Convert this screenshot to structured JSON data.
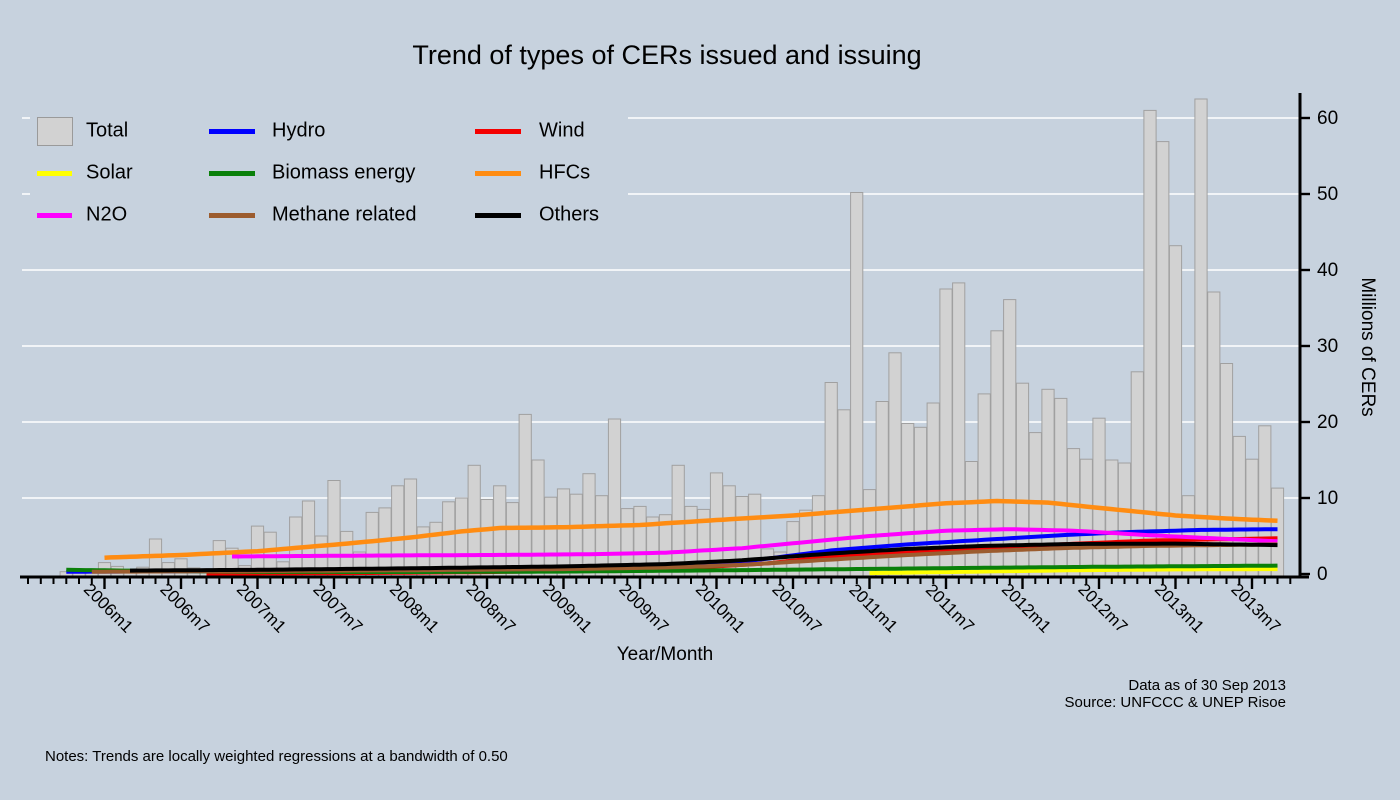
{
  "title": "Trend of types of CERs issued and issuing",
  "notes": "Notes: Trends are locally weighted regressions at a bandwidth of 0.50",
  "source": {
    "line1": "Data as of 30 Sep 2013",
    "line2": "Source: UNFCCC & UNEP Risoe"
  },
  "colors": {
    "background": "#c7d2de",
    "gridline": "#ffffff",
    "bar_fill": "#d2d2d2",
    "bar_border": "#a0a0a0",
    "total": "#d2d2d2",
    "hydro": "#0000ff",
    "wind": "#f40000",
    "solar": "#ffff00",
    "biomass": "#0a800a",
    "hfcs": "#ff8c12",
    "n2o": "#ff00ff",
    "methane": "#9c5c2e",
    "others": "#000000"
  },
  "legend": {
    "items": [
      {
        "label": "Total",
        "series": "total",
        "type": "box"
      },
      {
        "label": "Hydro",
        "series": "hydro",
        "type": "line"
      },
      {
        "label": "Wind",
        "series": "wind",
        "type": "line"
      },
      {
        "label": "Solar",
        "series": "solar",
        "type": "line"
      },
      {
        "label": "Biomass energy",
        "series": "biomass",
        "type": "line"
      },
      {
        "label": "HFCs",
        "series": "hfcs",
        "type": "line"
      },
      {
        "label": "N2O",
        "series": "n2o",
        "type": "line"
      },
      {
        "label": "Methane related",
        "series": "methane",
        "type": "line"
      },
      {
        "label": "Others",
        "series": "others",
        "type": "line"
      }
    ]
  },
  "chart_data": {
    "type": "bar+line",
    "title": "Trend of types of CERs issued and issuing",
    "xlabel": "Year/Month",
    "ylabel": "Millions of CERs",
    "ylim": [
      0,
      63
    ],
    "y_ticks": [
      0,
      10,
      20,
      30,
      40,
      50,
      60
    ],
    "grid": "horizontal-white",
    "legend_position": "top-left-inside",
    "x_major_ticks": [
      "2006m1",
      "2006m7",
      "2007m1",
      "2007m7",
      "2008m1",
      "2008m7",
      "2009m1",
      "2009m7",
      "2010m1",
      "2010m7",
      "2011m1",
      "2011m7",
      "2012m1",
      "2012m7",
      "2013m1",
      "2013m7"
    ],
    "bar_series_name": "Total",
    "bar_months": [
      "2005m10",
      "2005m11",
      "2005m12",
      "2006m1",
      "2006m2",
      "2006m3",
      "2006m4",
      "2006m5",
      "2006m6",
      "2006m7",
      "2006m8",
      "2006m9",
      "2006m10",
      "2006m11",
      "2006m12",
      "2007m1",
      "2007m2",
      "2007m3",
      "2007m4",
      "2007m5",
      "2007m6",
      "2007m7",
      "2007m8",
      "2007m9",
      "2007m10",
      "2007m11",
      "2007m12",
      "2008m1",
      "2008m2",
      "2008m3",
      "2008m4",
      "2008m5",
      "2008m6",
      "2008m7",
      "2008m8",
      "2008m9",
      "2008m10",
      "2008m11",
      "2008m12",
      "2009m1",
      "2009m2",
      "2009m3",
      "2009m4",
      "2009m5",
      "2009m6",
      "2009m7",
      "2009m8",
      "2009m9",
      "2009m10",
      "2009m11",
      "2009m12",
      "2010m1",
      "2010m2",
      "2010m3",
      "2010m4",
      "2010m5",
      "2010m6",
      "2010m7",
      "2010m8",
      "2010m9",
      "2010m10",
      "2010m11",
      "2010m12",
      "2011m1",
      "2011m2",
      "2011m3",
      "2011m4",
      "2011m5",
      "2011m6",
      "2011m7",
      "2011m8",
      "2011m9",
      "2011m10",
      "2011m11",
      "2011m12",
      "2012m1",
      "2012m2",
      "2012m3",
      "2012m4",
      "2012m5",
      "2012m6",
      "2012m7",
      "2012m8",
      "2012m9",
      "2012m10",
      "2012m11",
      "2012m12",
      "2013m1",
      "2013m2",
      "2013m3",
      "2013m4",
      "2013m5",
      "2013m6",
      "2013m7",
      "2013m8",
      "2013m9"
    ],
    "bar_values": [
      0.3,
      0.15,
      0.15,
      1.5,
      1.0,
      0.5,
      0.9,
      4.6,
      1.5,
      2.0,
      0.8,
      0.6,
      4.4,
      3.4,
      1.1,
      6.3,
      5.5,
      1.6,
      7.5,
      9.6,
      5.0,
      12.3,
      5.6,
      2.9,
      8.1,
      8.7,
      11.6,
      12.5,
      6.2,
      6.8,
      9.5,
      10.0,
      14.3,
      9.8,
      11.6,
      9.4,
      21.0,
      15.0,
      10.1,
      11.2,
      10.5,
      13.2,
      10.3,
      20.4,
      8.6,
      8.9,
      7.5,
      7.8,
      14.3,
      8.9,
      8.5,
      13.3,
      11.6,
      10.2,
      10.5,
      3.3,
      2.9,
      6.9,
      8.4,
      10.3,
      25.2,
      21.6,
      50.2,
      11.1,
      22.7,
      29.1,
      19.8,
      19.3,
      22.5,
      37.5,
      38.3,
      14.8,
      23.7,
      32.0,
      36.1,
      25.1,
      18.6,
      24.3,
      23.1,
      16.5,
      15.1,
      20.5,
      15.0,
      14.6,
      26.6,
      61.0,
      56.9,
      43.2,
      10.3,
      62.5,
      37.1,
      27.7,
      18.1,
      15.1,
      19.5,
      11.3
    ],
    "line_series_note": "points are [monthIndex relative to 2006m1 = 0, millions of CERs]; lowess trends",
    "line_series": [
      {
        "name": "Hydro",
        "series": "hydro",
        "points": [
          [
            -3,
            0.3
          ],
          [
            6,
            0.35
          ],
          [
            18,
            0.45
          ],
          [
            30,
            0.55
          ],
          [
            40,
            0.7
          ],
          [
            46,
            1.0
          ],
          [
            50,
            1.6
          ],
          [
            57,
            3.1
          ],
          [
            63,
            3.9
          ],
          [
            69,
            4.5
          ],
          [
            75,
            5.1
          ],
          [
            80,
            5.5
          ],
          [
            86,
            5.8
          ],
          [
            92,
            5.9
          ]
        ]
      },
      {
        "name": "Wind",
        "series": "wind",
        "points": [
          [
            8,
            0.05
          ],
          [
            18,
            0.1
          ],
          [
            30,
            0.25
          ],
          [
            40,
            0.5
          ],
          [
            46,
            0.8
          ],
          [
            52,
            1.4
          ],
          [
            57,
            2.3
          ],
          [
            63,
            2.9
          ],
          [
            69,
            3.4
          ],
          [
            75,
            3.9
          ],
          [
            82,
            4.4
          ],
          [
            92,
            4.7
          ]
        ]
      },
      {
        "name": "Solar",
        "series": "solar",
        "points": [
          [
            60,
            0.12
          ],
          [
            68,
            0.3
          ],
          [
            76,
            0.5
          ],
          [
            84,
            0.6
          ],
          [
            92,
            0.65
          ]
        ]
      },
      {
        "name": "Biomass energy",
        "series": "biomass",
        "points": [
          [
            -3,
            0.55
          ],
          [
            4,
            0.4
          ],
          [
            12,
            0.28
          ],
          [
            24,
            0.26
          ],
          [
            36,
            0.32
          ],
          [
            46,
            0.45
          ],
          [
            57,
            0.62
          ],
          [
            68,
            0.8
          ],
          [
            78,
            0.95
          ],
          [
            92,
            1.1
          ]
        ]
      },
      {
        "name": "HFCs",
        "series": "hfcs",
        "points": [
          [
            0,
            2.15
          ],
          [
            6,
            2.5
          ],
          [
            12,
            3.0
          ],
          [
            19,
            4.0
          ],
          [
            24,
            4.8
          ],
          [
            28,
            5.6
          ],
          [
            31,
            6.05
          ],
          [
            36,
            6.15
          ],
          [
            42,
            6.45
          ],
          [
            48,
            7.1
          ],
          [
            54,
            7.7
          ],
          [
            60,
            8.5
          ],
          [
            66,
            9.3
          ],
          [
            70,
            9.6
          ],
          [
            74,
            9.4
          ],
          [
            78,
            8.7
          ],
          [
            84,
            7.7
          ],
          [
            88,
            7.3
          ],
          [
            92,
            7.0
          ]
        ]
      },
      {
        "name": "N2O",
        "series": "n2o",
        "points": [
          [
            10,
            2.3
          ],
          [
            18,
            2.4
          ],
          [
            30,
            2.5
          ],
          [
            38,
            2.6
          ],
          [
            44,
            2.8
          ],
          [
            50,
            3.4
          ],
          [
            55,
            4.2
          ],
          [
            60,
            5.0
          ],
          [
            66,
            5.7
          ],
          [
            71,
            5.9
          ],
          [
            76,
            5.7
          ],
          [
            82,
            5.1
          ],
          [
            87,
            4.7
          ],
          [
            92,
            4.3
          ]
        ]
      },
      {
        "name": "Methane related",
        "series": "methane",
        "points": [
          [
            -1,
            0.3
          ],
          [
            12,
            0.38
          ],
          [
            24,
            0.5
          ],
          [
            36,
            0.65
          ],
          [
            44,
            0.85
          ],
          [
            50,
            1.2
          ],
          [
            57,
            1.9
          ],
          [
            63,
            2.5
          ],
          [
            69,
            3.0
          ],
          [
            75,
            3.4
          ],
          [
            82,
            3.7
          ],
          [
            92,
            3.9
          ]
        ]
      },
      {
        "name": "Others",
        "series": "others",
        "points": [
          [
            2,
            0.45
          ],
          [
            12,
            0.55
          ],
          [
            24,
            0.75
          ],
          [
            36,
            1.0
          ],
          [
            44,
            1.3
          ],
          [
            50,
            1.8
          ],
          [
            57,
            2.7
          ],
          [
            63,
            3.3
          ],
          [
            69,
            3.7
          ],
          [
            76,
            3.95
          ],
          [
            84,
            4.0
          ],
          [
            92,
            3.8
          ]
        ]
      }
    ]
  }
}
